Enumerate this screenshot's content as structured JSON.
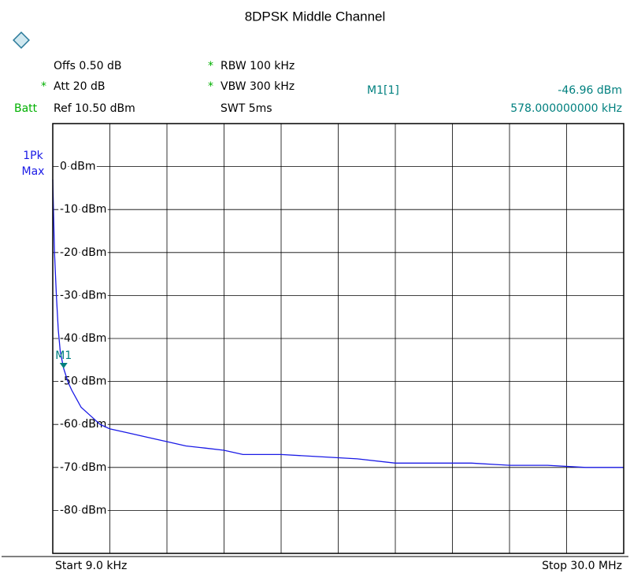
{
  "chart_data": {
    "type": "line",
    "title": "8DPSK Middle Channel",
    "header": {
      "offs": "Offs 0.50 dB",
      "att_flag": "*",
      "att": "Att  20 dB",
      "batt": "Batt",
      "ref": "Ref  10.50 dBm",
      "rbw_flag": "*",
      "rbw": "RBW 100 kHz",
      "vbw_flag": "*",
      "vbw": "VBW 300 kHz",
      "swt": "SWT 5ms",
      "trace_mode": "1Pk",
      "trace_detector": "Max"
    },
    "marker": {
      "name": "M1[1]",
      "label": "M1",
      "x": 578,
      "value": -46.96,
      "value_label": "-46.96 dBm",
      "x_label": "578.000000000 kHz",
      "color": "#00807f"
    },
    "start_label": "Start 9.0 kHz",
    "stop_label": "Stop 30.0 MHz",
    "xlim": [
      9,
      30000
    ],
    "ylim": [
      -90,
      10
    ],
    "yticks": [
      {
        "value": 0,
        "label": "0 dBm"
      },
      {
        "value": -10,
        "label": "-10 dBm"
      },
      {
        "value": -20,
        "label": "-20 dBm"
      },
      {
        "value": -30,
        "label": "-30 dBm"
      },
      {
        "value": -40,
        "label": "-40 dBm"
      },
      {
        "value": -50,
        "label": "-50 dBm"
      },
      {
        "value": -60,
        "label": "-60 dBm"
      },
      {
        "value": -70,
        "label": "-70 dBm"
      },
      {
        "value": -80,
        "label": "-80 dBm"
      }
    ],
    "grid": true,
    "x": [
      9,
      100,
      200,
      300,
      400,
      578,
      800,
      1000,
      1500,
      2000,
      2500,
      3000,
      4000,
      5000,
      6000,
      7000,
      8000,
      9000,
      10000,
      12000,
      14000,
      16000,
      18000,
      20000,
      22000,
      24000,
      26000,
      28000,
      30000
    ],
    "series": [
      {
        "color": "#1a1ae6",
        "values": [
          -3,
          -20,
          -30,
          -38,
          -43,
          -46.96,
          -50,
          -52,
          -56,
          -58,
          -60,
          -61,
          -62,
          -63,
          -64,
          -65,
          -65.5,
          -66,
          -67,
          -67,
          -67.5,
          -68,
          -69,
          -69,
          -69,
          -69.5,
          -69.5,
          -70,
          -70
        ]
      }
    ]
  }
}
